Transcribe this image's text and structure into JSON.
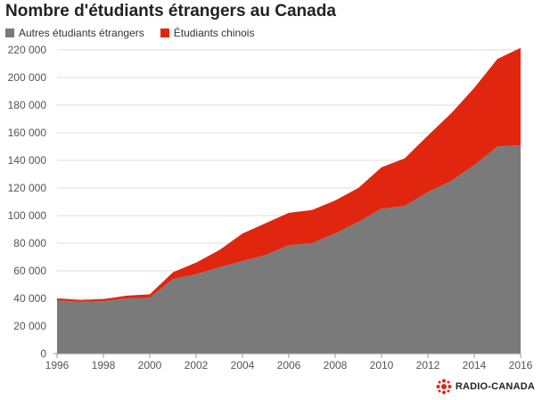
{
  "chart_data": {
    "type": "area",
    "stacked": true,
    "title": "Nombre d'étudiants étrangers au Canada",
    "x": [
      1996,
      1997,
      1998,
      1999,
      2000,
      2001,
      2002,
      2003,
      2004,
      2005,
      2006,
      2007,
      2008,
      2009,
      2010,
      2011,
      2012,
      2013,
      2014,
      2015,
      2016
    ],
    "series": [
      {
        "name": "Autres étudiants étrangers",
        "color": "#7a7a7a",
        "values": [
          38500,
          37500,
          38000,
          40000,
          40500,
          54000,
          57500,
          62500,
          67000,
          71500,
          78500,
          80000,
          87000,
          95500,
          105000,
          107000,
          117000,
          125000,
          136500,
          150000,
          151000
        ]
      },
      {
        "name": "Étudiants chinois",
        "color": "#e1260f",
        "values": [
          1500,
          1500,
          1500,
          2000,
          2500,
          5000,
          8500,
          12500,
          20000,
          23000,
          23500,
          24000,
          24000,
          24500,
          30000,
          34500,
          41000,
          49000,
          56000,
          63500,
          70500
        ]
      }
    ],
    "ylim": [
      0,
      220000
    ],
    "yticks": [
      0,
      20000,
      40000,
      60000,
      80000,
      100000,
      120000,
      140000,
      160000,
      180000,
      200000,
      220000
    ],
    "ytick_labels": [
      "0",
      "20 000",
      "40 000",
      "60 000",
      "80 000",
      "100 000",
      "120 000",
      "140 000",
      "160 000",
      "180 000",
      "200 000",
      "220 000"
    ],
    "xticks": [
      1996,
      1998,
      2000,
      2002,
      2004,
      2006,
      2008,
      2010,
      2012,
      2014,
      2016
    ],
    "xlim": [
      1996,
      2016
    ],
    "grid": true,
    "legend_position": "top-left"
  },
  "logo": {
    "text": "RADIO-CANADA"
  }
}
